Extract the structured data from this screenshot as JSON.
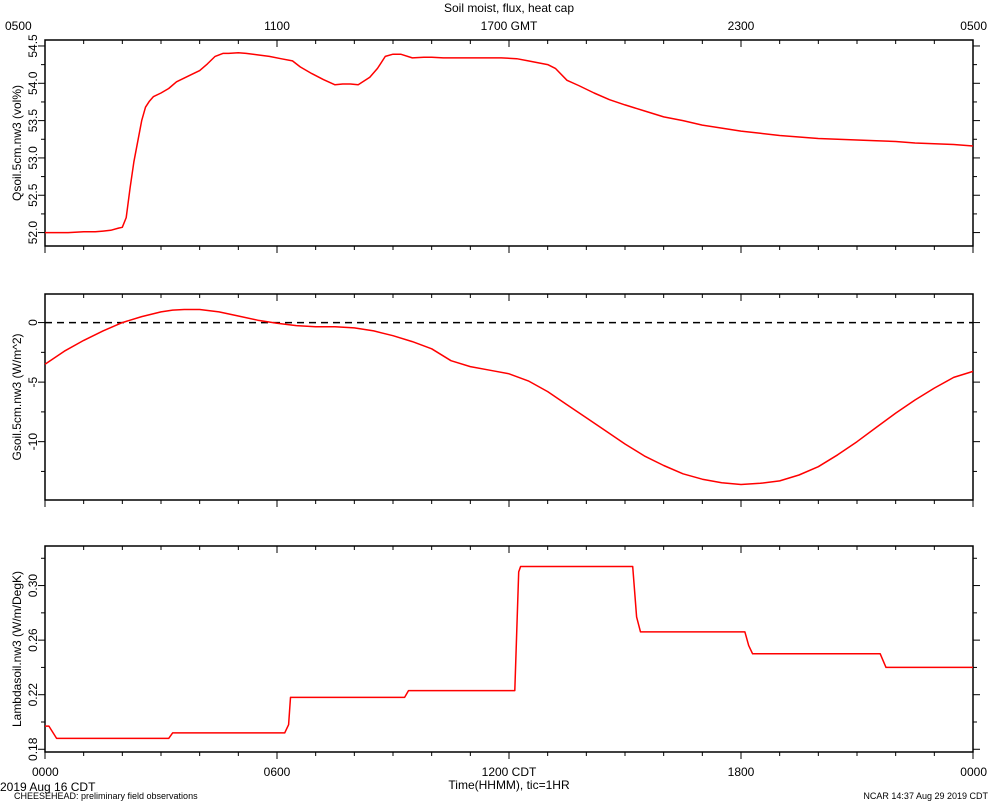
{
  "title": "Soil moist, flux, heat cap",
  "top_axis": {
    "ticks": [
      {
        "hour": 0,
        "label": "0500"
      },
      {
        "hour": 6,
        "label": "1100"
      },
      {
        "hour": 12,
        "label": "1700 GMT"
      },
      {
        "hour": 18,
        "label": "2300"
      },
      {
        "hour": 24,
        "label": "0500"
      }
    ]
  },
  "bottom_axis": {
    "ticks": [
      {
        "hour": 0,
        "label": "0000"
      },
      {
        "hour": 6,
        "label": "0600"
      },
      {
        "hour": 12,
        "label": "1200 CDT"
      },
      {
        "hour": 18,
        "label": "1800"
      },
      {
        "hour": 24,
        "label": "0000"
      }
    ],
    "xlabel": "Time(HHMM), tic=1HR"
  },
  "footer": {
    "date": "2019 Aug 16 CDT",
    "project": "CHEESEHEAD: preliminary field observations",
    "credit": "NCAR 14:37 Aug 29 2019 CDT"
  },
  "colors": {
    "series": "#ff0000",
    "axes": "#000000",
    "zero_line": "#000000"
  },
  "chart_data": [
    {
      "type": "line",
      "ylabel": "Qsoil.5cm.nw3 (vol%)",
      "x_unit": "hour (CDT)",
      "xlim": [
        0,
        24
      ],
      "ylim": [
        51.82,
        54.58
      ],
      "yticks": [
        52.0,
        52.5,
        53.0,
        53.5,
        54.0,
        54.5
      ],
      "ytick_labels": [
        "52.0",
        "52.5",
        "53.0",
        "53.5",
        "54.0",
        "54.5"
      ],
      "series": [
        {
          "x": [
            0.0,
            0.3,
            0.6,
            1.0,
            1.3,
            1.5,
            1.7,
            1.9,
            2.0,
            2.1,
            2.2,
            2.3,
            2.5,
            2.6,
            2.7,
            2.8,
            3.0,
            3.2,
            3.4,
            3.6,
            3.8,
            4.0,
            4.2,
            4.4,
            4.6,
            4.75,
            5.0,
            5.2,
            5.5,
            5.8,
            6.1,
            6.4,
            6.6,
            6.9,
            7.2,
            7.5,
            7.7,
            7.9,
            8.1,
            8.4,
            8.6,
            8.8,
            9.0,
            9.2,
            9.5,
            9.8,
            10.0,
            10.3,
            10.6,
            11.0,
            11.4,
            11.8,
            12.2,
            12.5,
            12.8,
            13.0,
            13.2,
            13.5,
            13.8,
            14.2,
            14.6,
            15.0,
            15.5,
            16.0,
            16.5,
            17.0,
            17.5,
            18.0,
            18.5,
            19.0,
            19.5,
            20.0,
            20.5,
            21.0,
            21.5,
            22.0,
            22.5,
            23.0,
            23.5,
            24.0
          ],
          "y": [
            52.0,
            52.0,
            52.0,
            52.01,
            52.01,
            52.02,
            52.03,
            52.06,
            52.07,
            52.2,
            52.6,
            52.95,
            53.5,
            53.68,
            53.76,
            53.82,
            53.87,
            53.93,
            54.02,
            54.07,
            54.12,
            54.17,
            54.26,
            54.36,
            54.4,
            54.4,
            54.41,
            54.4,
            54.38,
            54.36,
            54.33,
            54.3,
            54.22,
            54.13,
            54.05,
            53.98,
            53.99,
            53.99,
            53.98,
            54.08,
            54.2,
            54.36,
            54.39,
            54.39,
            54.34,
            54.35,
            54.35,
            54.34,
            54.34,
            54.34,
            54.34,
            54.34,
            54.33,
            54.3,
            54.27,
            54.25,
            54.2,
            54.04,
            53.97,
            53.87,
            53.78,
            53.71,
            53.63,
            53.55,
            53.5,
            53.44,
            53.4,
            53.36,
            53.33,
            53.3,
            53.28,
            53.26,
            53.25,
            53.24,
            53.23,
            53.22,
            53.2,
            53.19,
            53.18,
            53.16
          ]
        }
      ]
    },
    {
      "type": "line",
      "ylabel": "Gsoil.5cm.nw3 (W/m^2)",
      "x_unit": "hour (CDT)",
      "xlim": [
        0,
        24
      ],
      "ylim": [
        -14.9,
        2.4
      ],
      "yticks": [
        0,
        -5,
        -10
      ],
      "ytick_labels": [
        "0",
        "-5",
        "-10"
      ],
      "zero_line": true,
      "series": [
        {
          "x": [
            0.0,
            0.5,
            1.0,
            1.5,
            2.0,
            2.5,
            3.0,
            3.3,
            3.6,
            4.0,
            4.5,
            5.0,
            5.5,
            6.0,
            6.5,
            7.0,
            7.5,
            8.0,
            8.5,
            9.0,
            9.5,
            10.0,
            10.5,
            11.0,
            11.5,
            12.0,
            12.5,
            13.0,
            13.5,
            14.0,
            14.5,
            15.0,
            15.5,
            16.0,
            16.5,
            17.0,
            17.5,
            18.0,
            18.5,
            19.0,
            19.5,
            20.0,
            20.5,
            21.0,
            21.5,
            22.0,
            22.5,
            23.0,
            23.5,
            24.0
          ],
          "y": [
            -3.5,
            -2.4,
            -1.5,
            -0.7,
            0.0,
            0.5,
            0.9,
            1.05,
            1.1,
            1.1,
            0.9,
            0.55,
            0.2,
            -0.05,
            -0.25,
            -0.35,
            -0.35,
            -0.45,
            -0.7,
            -1.1,
            -1.6,
            -2.2,
            -3.2,
            -3.7,
            -4.0,
            -4.3,
            -4.9,
            -5.8,
            -6.9,
            -8.0,
            -9.1,
            -10.2,
            -11.2,
            -12.0,
            -12.7,
            -13.15,
            -13.45,
            -13.6,
            -13.5,
            -13.3,
            -12.8,
            -12.1,
            -11.1,
            -10.0,
            -8.8,
            -7.6,
            -6.5,
            -5.5,
            -4.6,
            -4.1
          ]
        }
      ]
    },
    {
      "type": "line",
      "ylabel": "Lambdasoil.nw3 (W/m/DegK)",
      "x_unit": "hour (CDT)",
      "xlim": [
        0,
        24
      ],
      "ylim": [
        0.178,
        0.329
      ],
      "yticks": [
        0.18,
        0.22,
        0.26,
        0.3
      ],
      "ytick_labels": [
        "0.18",
        "0.22",
        "0.26",
        "0.30"
      ],
      "series": [
        {
          "x": [
            0.0,
            0.1,
            0.3,
            0.8,
            1.5,
            2.5,
            3.2,
            3.3,
            3.5,
            4.5,
            5.5,
            6.2,
            6.3,
            6.35,
            7.0,
            8.0,
            9.0,
            9.3,
            9.4,
            10.0,
            11.0,
            12.15,
            12.25,
            12.3,
            13.0,
            14.0,
            15.2,
            15.3,
            15.4,
            16.5,
            17.5,
            18.1,
            18.2,
            18.3,
            19.0,
            20.0,
            21.0,
            21.6,
            21.75,
            22.5,
            23.5,
            24.0
          ],
          "y": [
            0.197,
            0.197,
            0.188,
            0.188,
            0.188,
            0.188,
            0.188,
            0.192,
            0.192,
            0.192,
            0.192,
            0.192,
            0.198,
            0.218,
            0.218,
            0.218,
            0.218,
            0.218,
            0.223,
            0.223,
            0.223,
            0.223,
            0.31,
            0.314,
            0.314,
            0.314,
            0.314,
            0.277,
            0.266,
            0.266,
            0.266,
            0.266,
            0.256,
            0.25,
            0.25,
            0.25,
            0.25,
            0.25,
            0.24,
            0.24,
            0.24,
            0.24
          ]
        }
      ]
    }
  ]
}
